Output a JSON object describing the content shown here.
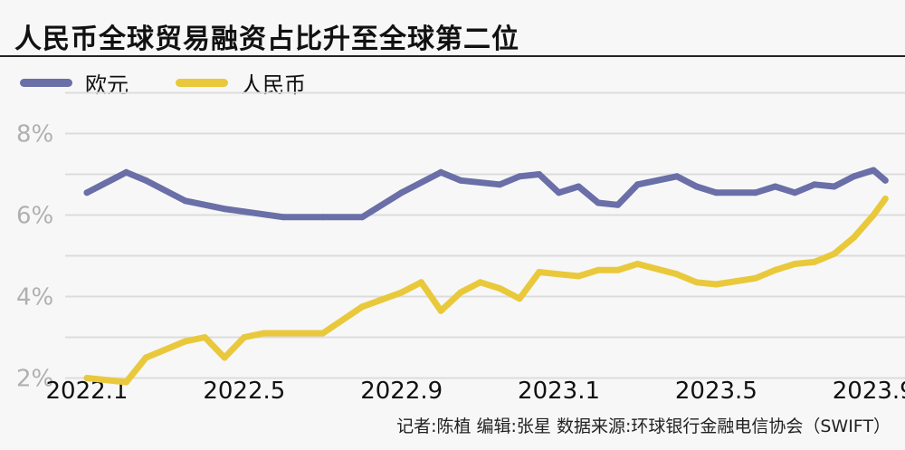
{
  "title": "人民币全球贸易融资占比升至全球第二位",
  "footer": "记者:陈植   编辑:张星   数据来源:环球银行金融电信协会（SWIFT）",
  "chart_data": {
    "type": "line",
    "title": "人民币全球贸易融资占比升至全球第二位",
    "grid": true,
    "legend_position": "top-left",
    "ylim": [
      1.5,
      9.5
    ],
    "yticks": [
      2,
      4,
      6,
      8
    ],
    "ytick_labels": [
      "2%",
      "4%",
      "6%",
      "8%"
    ],
    "xlim": [
      0,
      20.8
    ],
    "xticks": [
      0,
      4,
      8,
      12,
      16,
      20
    ],
    "xtick_labels": [
      "2022.1",
      "2022.5",
      "2022.9",
      "2023.1",
      "2023.5",
      "2023.9"
    ],
    "series": [
      {
        "name": "欧元",
        "color": "#6a6fa8",
        "x": [
          0,
          1,
          1.5,
          2.5,
          3.5,
          5,
          6,
          7,
          8,
          9,
          9.5,
          10.5,
          11,
          11.5,
          12,
          12.5,
          13,
          13.5,
          14,
          15,
          15.5,
          16,
          17,
          17.5,
          18,
          18.5,
          19,
          19.5,
          20,
          20.3
        ],
        "y": [
          6.55,
          7.05,
          6.85,
          6.35,
          6.15,
          5.95,
          5.95,
          5.95,
          6.55,
          7.05,
          6.85,
          6.75,
          6.95,
          7.0,
          6.55,
          6.7,
          6.3,
          6.25,
          6.75,
          6.95,
          6.7,
          6.55,
          6.55,
          6.7,
          6.55,
          6.75,
          6.7,
          6.95,
          7.1,
          6.85
        ]
      },
      {
        "name": "人民币",
        "color": "#e9c93b",
        "x": [
          0,
          1,
          1.5,
          2.5,
          3,
          3.5,
          4,
          4.5,
          5,
          6,
          7,
          8,
          8.5,
          9,
          9.5,
          10,
          10.5,
          11,
          11.5,
          12,
          12.5,
          13,
          13.5,
          14,
          15,
          15.5,
          16,
          17,
          17.5,
          18,
          18.5,
          19,
          19.5,
          20,
          20.3
        ],
        "y": [
          2.0,
          1.9,
          2.5,
          2.9,
          3.0,
          2.5,
          3.0,
          3.1,
          3.1,
          3.1,
          3.75,
          4.1,
          4.35,
          3.65,
          4.1,
          4.35,
          4.2,
          3.95,
          4.6,
          4.55,
          4.5,
          4.65,
          4.65,
          4.8,
          4.55,
          4.35,
          4.3,
          4.45,
          4.65,
          4.8,
          4.85,
          5.05,
          5.45,
          6.0,
          6.4
        ]
      }
    ]
  }
}
